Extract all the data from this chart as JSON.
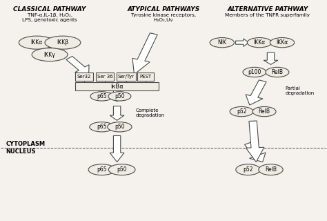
{
  "bg_color": "#f5f2ed",
  "line_color": "#4a4a4a",
  "fill_color": "#f0ece4",
  "title_classical": "CLASSICAL PATHWAY",
  "subtitle_classical": "TNF-α,IL-1β, H₂O₂,\nLPS, genotoxic agents",
  "title_atypical": "ATYPICAL PATHWAYS",
  "subtitle_atypical": "Tyrosine kinase receptors,\nH₂O₂,Uv",
  "title_alternative": "ALTERNATIVE PATHWAY",
  "subtitle_alternative": "Members of the TNFR superfamily",
  "cytoplasm_label": "CYTOPLASM",
  "nucleus_label": "NUCLEUS"
}
